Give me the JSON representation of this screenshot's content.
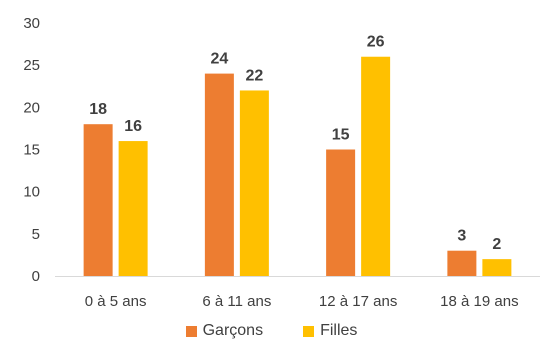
{
  "chart_data": {
    "type": "bar",
    "categories": [
      "0 à 5 ans",
      "6 à 11 ans",
      "12 à 17 ans",
      "18 à 19 ans"
    ],
    "series": [
      {
        "name": "Garçons",
        "values": [
          18,
          24,
          15,
          3
        ],
        "color": "#ED7D31"
      },
      {
        "name": "Filles",
        "values": [
          16,
          22,
          26,
          2
        ],
        "color": "#FFC000"
      }
    ],
    "yticks": [
      "0",
      "5",
      "10",
      "15",
      "20",
      "25",
      "30"
    ],
    "ylim": [
      0,
      30
    ],
    "grid": false,
    "legend": "bottom"
  }
}
